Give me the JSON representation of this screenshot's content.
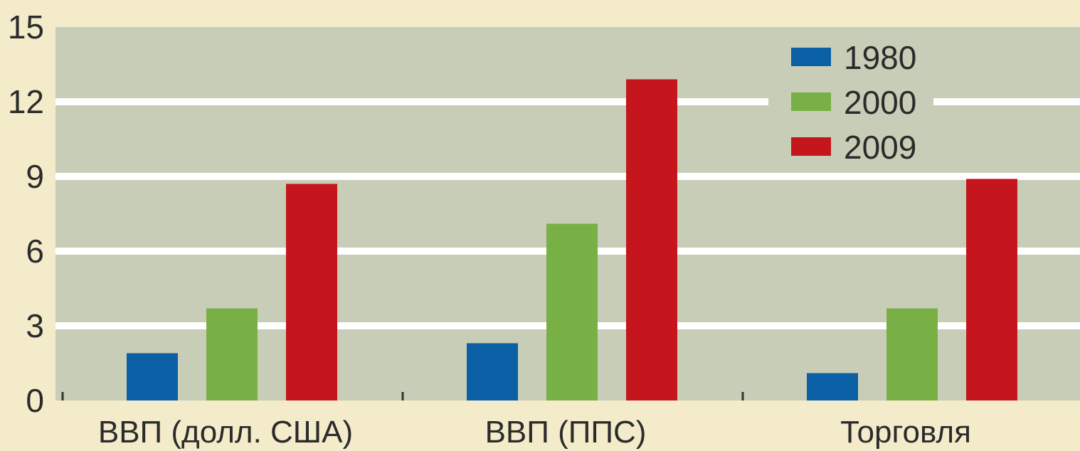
{
  "chart_data": {
    "type": "bar",
    "categories": [
      "ВВП (долл. США)",
      "ВВП (ППС)",
      "Торговля"
    ],
    "series": [
      {
        "name": "1980",
        "values": [
          1.9,
          2.3,
          1.1
        ],
        "color": "#0b5fa5"
      },
      {
        "name": "2000",
        "values": [
          3.7,
          7.1,
          3.7
        ],
        "color": "#78b045"
      },
      {
        "name": "2009",
        "values": [
          8.7,
          12.9,
          8.9
        ],
        "color": "#c4161c"
      }
    ],
    "yticks": [
      "0",
      "3",
      "6",
      "9",
      "12",
      "15"
    ],
    "ylim": [
      0,
      15
    ],
    "grid": true,
    "legend_position": "top-right",
    "colors": {
      "page_background": "#f3ebc9",
      "plot_background": "#c8cdb7",
      "gridline": "#ffffff"
    }
  }
}
